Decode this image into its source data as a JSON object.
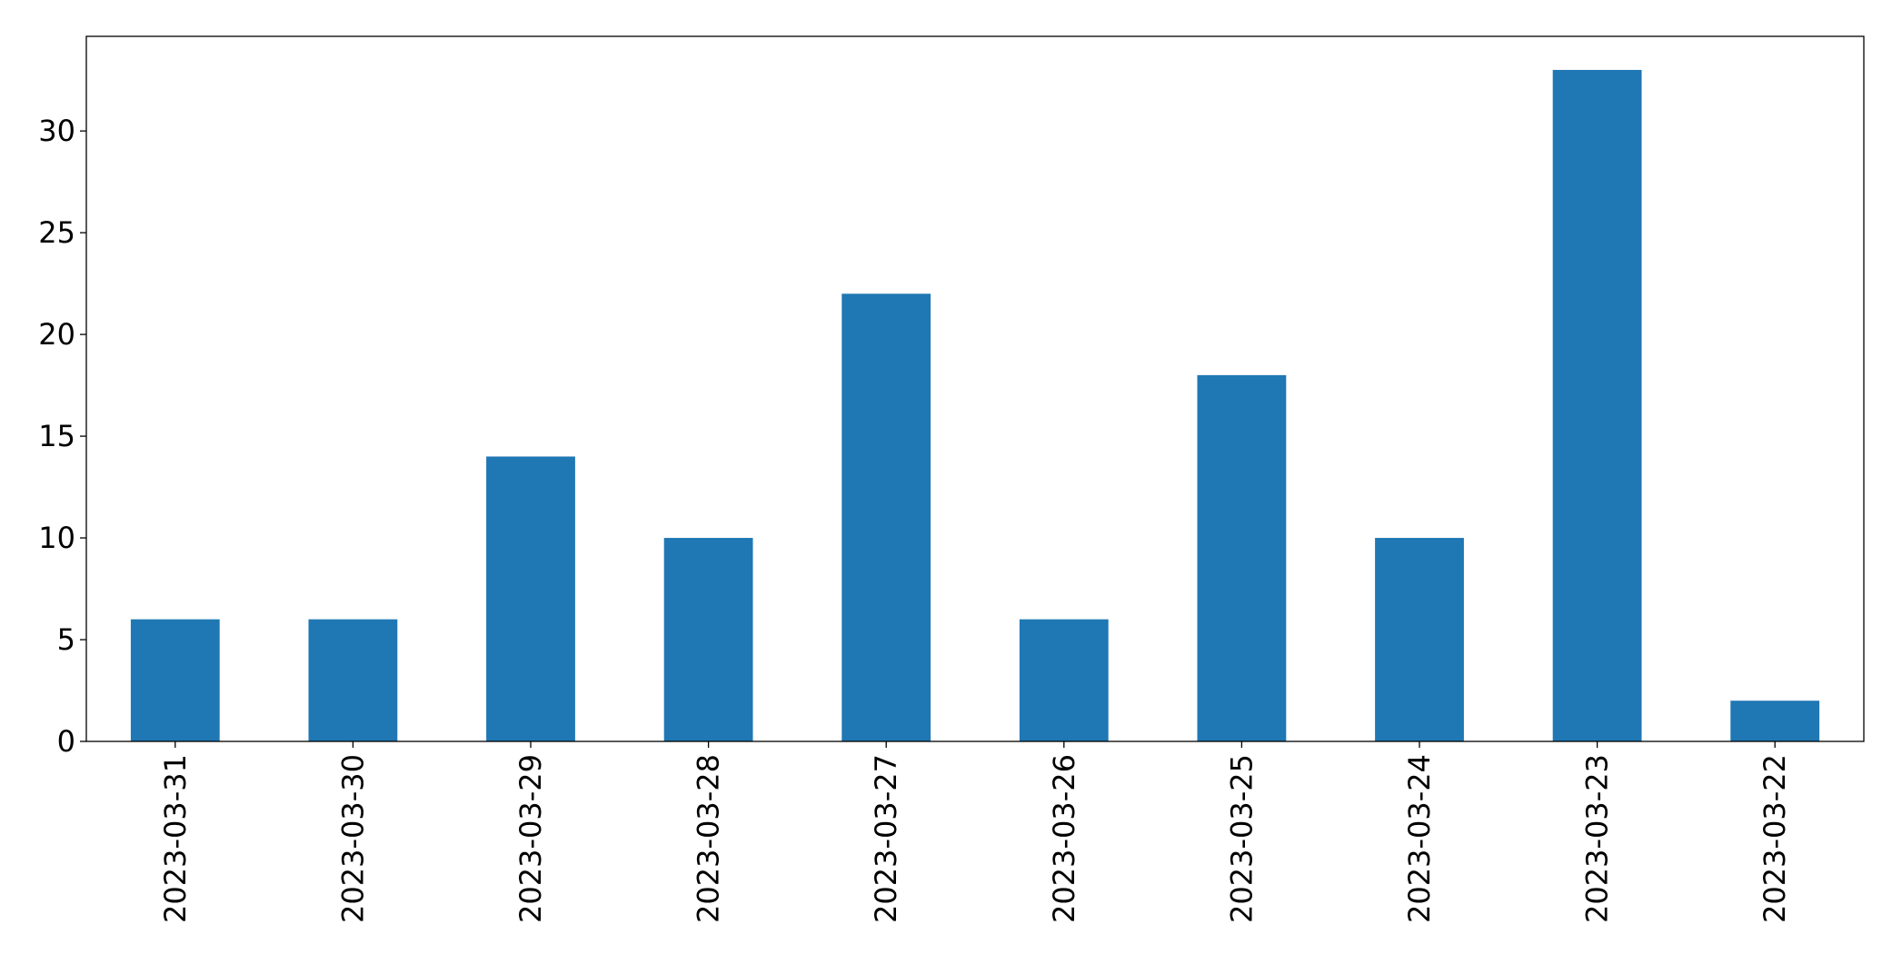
{
  "chart_data": {
    "type": "bar",
    "categories": [
      "2023-03-31",
      "2023-03-30",
      "2023-03-29",
      "2023-03-28",
      "2023-03-27",
      "2023-03-26",
      "2023-03-25",
      "2023-03-24",
      "2023-03-23",
      "2023-03-22"
    ],
    "values": [
      6,
      6,
      14,
      10,
      22,
      6,
      18,
      10,
      33,
      2
    ],
    "color": "#1f77b4",
    "ylim": [
      0,
      34.65
    ],
    "yticks": [
      0,
      5,
      10,
      15,
      20,
      25,
      30
    ],
    "grid": false
  }
}
